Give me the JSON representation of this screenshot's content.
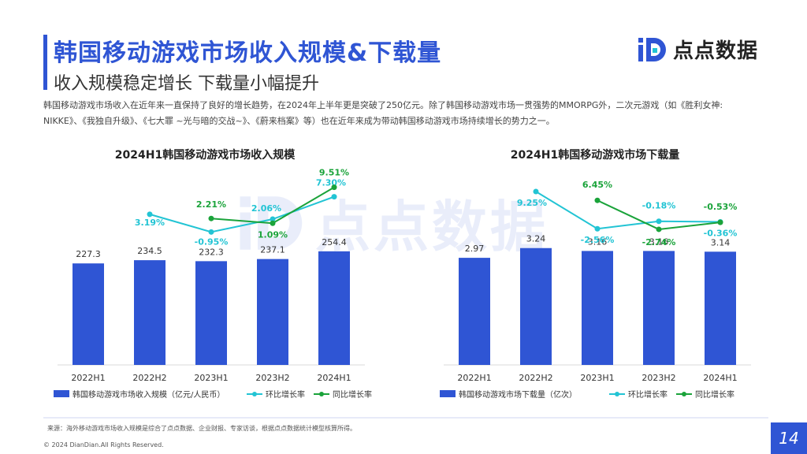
{
  "header": {
    "title": "韩国移动游戏市场收入规模&下载量",
    "subtitle": "收入规模稳定增长 下载量小幅提升"
  },
  "logo": {
    "text": "点点数据",
    "icon": "diandian-logo-icon",
    "color": "#2f55d4"
  },
  "description": {
    "line1": "韩国移动游戏市场收入在近年来一直保持了良好的增长趋势，在2024年上半年更是突破了250亿元。除了韩国移动游戏市场一贯强势的MMORPG外，二次元游戏（如《胜利女神:",
    "line2": "NIKKE》、《我独自升级》、《七大罪 ~光与暗的交战~》、《蔚来档案》等）也在近年来成为带动韩国移动游戏市场持续增长的势力之一。"
  },
  "watermark": {
    "text": "点点数据"
  },
  "footer": {
    "source": "来源：海外移动游戏市场收入规模是综合了点点数据、企业财报、专家访谈，根据点点数据统计模型核算所得。",
    "copyright": "© 2024 DianDian.All Rights Reserved.",
    "page": "14"
  },
  "colors": {
    "bar": "#2f55d4",
    "qoq": "#22c4d4",
    "yoy": "#1aa33a",
    "accent": "#2f55d4"
  },
  "chart_data": [
    {
      "type": "bar",
      "title": "2024H1韩国移动游戏市场收入规模",
      "categories": [
        "2022H1",
        "2022H2",
        "2023H1",
        "2023H2",
        "2024H1"
      ],
      "series": [
        {
          "name": "韩国移动游戏市场收入规模（亿元/人民币）",
          "type": "bar",
          "values": [
            227.3,
            234.5,
            232.3,
            237.1,
            254.4
          ],
          "labels": [
            "227.3",
            "234.5",
            "232.3",
            "237.1",
            "254.4"
          ]
        },
        {
          "name": "环比增长率",
          "type": "line",
          "values": [
            null,
            3.19,
            -0.95,
            2.06,
            7.3
          ],
          "labels": [
            "",
            "3.19%",
            "-0.95%",
            "2.06%",
            "7.30%"
          ]
        },
        {
          "name": "同比增长率",
          "type": "line",
          "values": [
            null,
            null,
            2.21,
            1.09,
            9.51
          ],
          "labels": [
            "",
            "",
            "2.21%",
            "1.09%",
            "9.51%"
          ]
        }
      ]
    },
    {
      "type": "bar",
      "title": "2024H1韩国移动游戏市场下载量",
      "categories": [
        "2022H1",
        "2022H2",
        "2023H1",
        "2023H2",
        "2024H1"
      ],
      "series": [
        {
          "name": "韩国移动游戏市场下载量（亿次）",
          "type": "bar",
          "values": [
            2.97,
            3.24,
            3.16,
            3.16,
            3.14
          ],
          "labels": [
            "2.97",
            "3.24",
            "3.16",
            "3.16",
            "3.14"
          ]
        },
        {
          "name": "环比增长率",
          "type": "line",
          "values": [
            null,
            9.25,
            -2.56,
            -0.18,
            -0.36
          ],
          "labels": [
            "",
            "9.25%",
            "-2.56%",
            "-0.18%",
            "-0.36%"
          ]
        },
        {
          "name": "同比增长率",
          "type": "line",
          "values": [
            null,
            null,
            6.45,
            -2.74,
            -0.53
          ],
          "labels": [
            "",
            "",
            "6.45%",
            "-2.74%",
            "-0.53%"
          ]
        }
      ]
    }
  ]
}
